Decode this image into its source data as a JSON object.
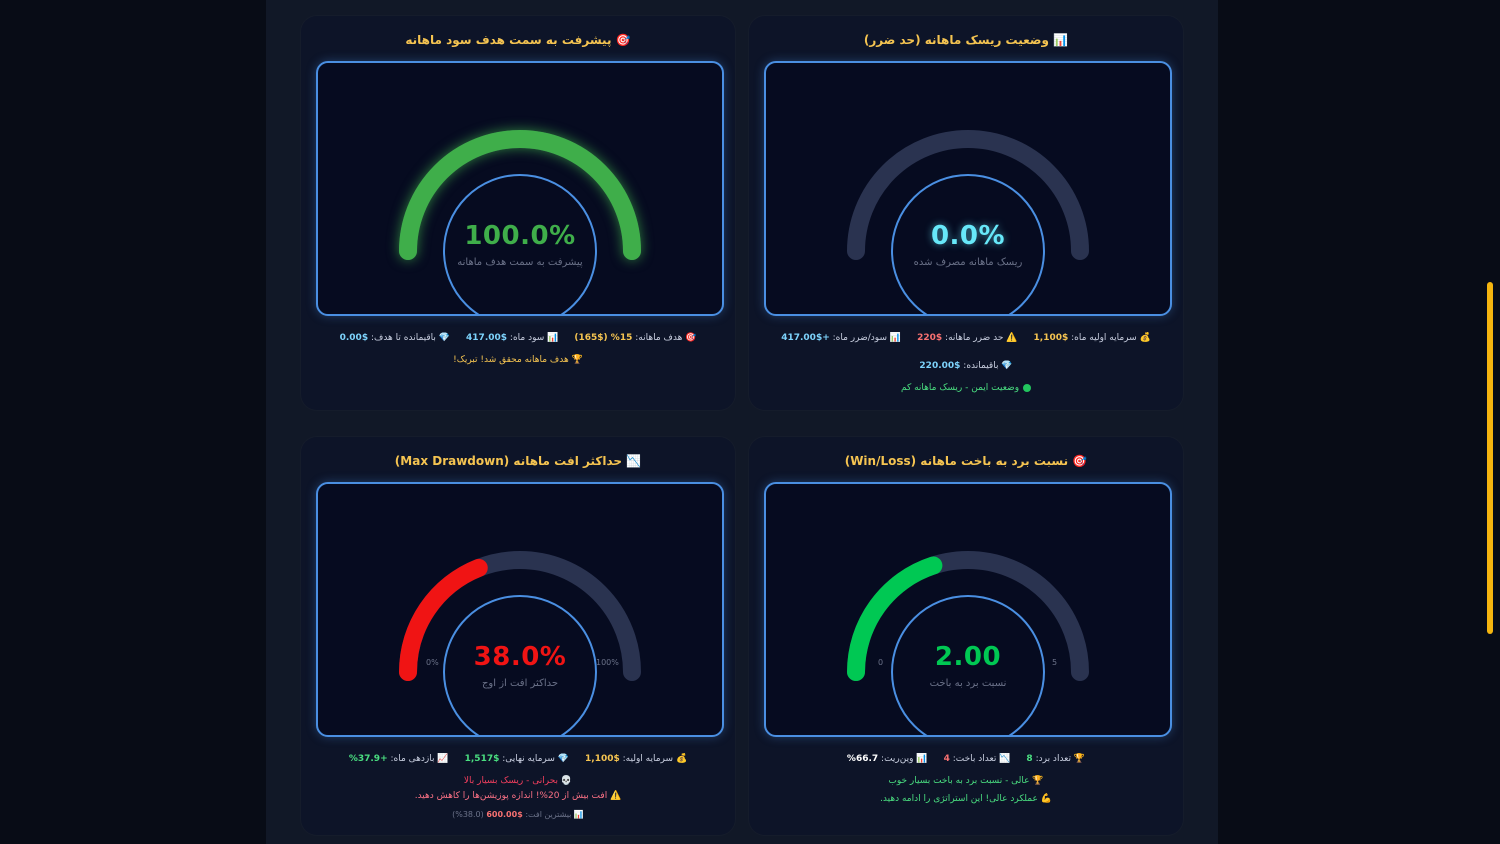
{
  "cards": {
    "profit": {
      "title": "پیشرفت به سمت هدف سود ماهانه",
      "title_icon": "🎯",
      "title_icon_name": "target-icon",
      "gauge_value": "100.0%",
      "gauge_fraction": 1.0,
      "gauge_color": "#3fae4a",
      "gauge_label": "پیشرفت به سمت هدف ماهانه",
      "stats": [
        {
          "icon": "🎯",
          "label": "هدف ماهانه:",
          "value": "15% ($165)",
          "color": "#f5c451"
        },
        {
          "icon": "📊",
          "label": "سود ماه:",
          "value": "$417.00",
          "color": "#7dd3fc"
        },
        {
          "icon": "💎",
          "label": "باقیمانده تا هدف:",
          "value": "$0.00",
          "color": "#7dd3fc"
        }
      ],
      "message_icon": "🏆",
      "message": "هدف ماهانه محقق شد! تبریک!"
    },
    "risk": {
      "title": "وضعیت ریسک ماهانه (حد ضرر)",
      "title_icon": "📊",
      "title_icon_name": "bar-chart-icon",
      "gauge_value": "0.0%",
      "gauge_fraction": 0.0,
      "gauge_color": "#5eead4",
      "gauge_label": "ریسک ماهانه مصرف شده",
      "stats": [
        {
          "icon": "💰",
          "label": "سرمایه اولیه ماه:",
          "value": "$1,100",
          "color": "#f5c451"
        },
        {
          "icon": "⚠️",
          "label": "حد ضرر ماهانه:",
          "value": "$220",
          "color": "#f87171"
        },
        {
          "icon": "📊",
          "label": "سود/ضرر ماه:",
          "value": "+$417.00",
          "color": "#7dd3fc"
        }
      ],
      "remaining_icon": "💎",
      "remaining_label": "باقیمانده:",
      "remaining_value": "$220.00",
      "status": "وضعیت ایمن - ریسک ماهانه کم"
    },
    "drawdown": {
      "title": "حداکثر افت ماهانه (Max Drawdown)",
      "title_icon": "📉",
      "title_icon_name": "chart-down-icon",
      "gauge_value": "38.0%",
      "gauge_fraction": 0.38,
      "gauge_color": "#f01414",
      "gauge_label": "حداکثر افت از اوج",
      "tick_min": "0%",
      "tick_max": "100%",
      "stats": [
        {
          "icon": "💰",
          "label": "سرمایه اولیه:",
          "value": "$1,100",
          "color": "#f5c451"
        },
        {
          "icon": "💎",
          "label": "سرمایه نهایی:",
          "value": "$1,517",
          "color": "#4ade80"
        },
        {
          "icon": "📈",
          "label": "بازدهی ماه:",
          "value": "+37.9%",
          "color": "#4ade80"
        }
      ],
      "warning1_icon": "💀",
      "warning1": "بحرانی - ریسک بسیار بالا",
      "warning2_icon": "⚠️",
      "warning2": "افت بیش از 20%! اندازه پوزیشن‌ها را کاهش دهید.",
      "peak_icon": "📊",
      "peak_label": "بیشترین افت:",
      "peak_value": "$600.00",
      "peak_pct": "(38.0%)"
    },
    "winloss": {
      "title": "نسبت برد به باخت ماهانه (Win/Loss)",
      "title_icon": "🎯",
      "title_icon_name": "target-icon",
      "gauge_value": "2.00",
      "gauge_fraction": 0.4,
      "gauge_color": "#00c853",
      "gauge_label": "نسبت برد به باخت",
      "tick_min": "0",
      "tick_max": "5",
      "stats": [
        {
          "icon": "🏆",
          "label": "تعداد برد:",
          "value": "8",
          "color": "#4ade80"
        },
        {
          "icon": "📉",
          "label": "تعداد باخت:",
          "value": "4",
          "color": "#f87171"
        },
        {
          "icon": "📊",
          "label": "وین‌ریت:",
          "value": "66.7%",
          "color": "#ffffff"
        }
      ],
      "message1_icon": "🏆",
      "message1": "عالی - نسبت برد به باخت بسیار خوب",
      "message2_icon": "💪",
      "message2": "عملکرد عالی! این استراتژی را ادامه دهید."
    }
  },
  "colors": {
    "track": "#2a3350",
    "frame_border": "#4a8fe2",
    "title": "#f5c451"
  }
}
